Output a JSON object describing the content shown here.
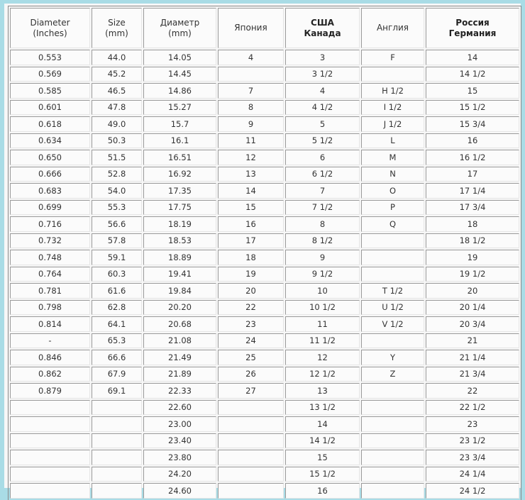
{
  "table": {
    "headers": [
      [
        "Diameter",
        "(Inches)"
      ],
      [
        "Size",
        "(mm)"
      ],
      [
        "Диаметр",
        "(mm)"
      ],
      [
        "Япония",
        ""
      ],
      [
        "США",
        "Канада"
      ],
      [
        "Англия",
        ""
      ],
      [
        "Россия",
        "Германия"
      ]
    ],
    "bold_headers": [
      4,
      6
    ],
    "rows": [
      [
        "0.553",
        "44.0",
        "14.05",
        "4",
        "3",
        "F",
        "14"
      ],
      [
        "0.569",
        "45.2",
        "14.45",
        "",
        "3 1/2",
        "",
        "14 1/2"
      ],
      [
        "0.585",
        "46.5",
        "14.86",
        "7",
        "4",
        "H 1/2",
        "15"
      ],
      [
        "0.601",
        "47.8",
        "15.27",
        "8",
        "4 1/2",
        "I 1/2",
        "15 1/2"
      ],
      [
        "0.618",
        "49.0",
        "15.7",
        "9",
        "5",
        "J 1/2",
        "15 3/4"
      ],
      [
        "0.634",
        "50.3",
        "16.1",
        "11",
        "5 1/2",
        "L",
        "16"
      ],
      [
        "0.650",
        "51.5",
        "16.51",
        "12",
        "6",
        "M",
        "16 1/2"
      ],
      [
        "0.666",
        "52.8",
        "16.92",
        "13",
        "6 1/2",
        "N",
        "17"
      ],
      [
        "0.683",
        "54.0",
        "17.35",
        "14",
        "7",
        "O",
        "17 1/4"
      ],
      [
        "0.699",
        "55.3",
        "17.75",
        "15",
        "7 1/2",
        "P",
        "17 3/4"
      ],
      [
        "0.716",
        "56.6",
        "18.19",
        "16",
        "8",
        "Q",
        "18"
      ],
      [
        "0.732",
        "57.8",
        "18.53",
        "17",
        "8 1/2",
        "",
        "18 1/2"
      ],
      [
        "0.748",
        "59.1",
        "18.89",
        "18",
        "9",
        "",
        "19"
      ],
      [
        "0.764",
        "60.3",
        "19.41",
        "19",
        "9 1/2",
        "",
        "19 1/2"
      ],
      [
        "0.781",
        "61.6",
        "19.84",
        "20",
        "10",
        "T 1/2",
        "20"
      ],
      [
        "0.798",
        "62.8",
        "20.20",
        "22",
        "10 1/2",
        "U 1/2",
        "20 1/4"
      ],
      [
        "0.814",
        "64.1",
        "20.68",
        "23",
        "11",
        "V 1/2",
        "20 3/4"
      ],
      [
        "-",
        "65.3",
        "21.08",
        "24",
        "11 1/2",
        "",
        "21"
      ],
      [
        "0.846",
        "66.6",
        "21.49",
        "25",
        "12",
        "Y",
        "21 1/4"
      ],
      [
        "0.862",
        "67.9",
        "21.89",
        "26",
        "12 1/2",
        "Z",
        "21 3/4"
      ],
      [
        "0.879",
        "69.1",
        "22.33",
        "27",
        "13",
        "",
        "22"
      ],
      [
        "",
        "",
        "22.60",
        "",
        "13 1/2",
        "",
        "22 1/2"
      ],
      [
        "",
        "",
        "23.00",
        "",
        "14",
        "",
        "23"
      ],
      [
        "",
        "",
        "23.40",
        "",
        "14 1/2",
        "",
        "23 1/2"
      ],
      [
        "",
        "",
        "23.80",
        "",
        "15",
        "",
        "23 3/4"
      ],
      [
        "",
        "",
        "24.20",
        "",
        "15 1/2",
        "",
        "24 1/4"
      ],
      [
        "",
        "",
        "24.60",
        "",
        "16",
        "",
        "24 1/2"
      ]
    ]
  }
}
